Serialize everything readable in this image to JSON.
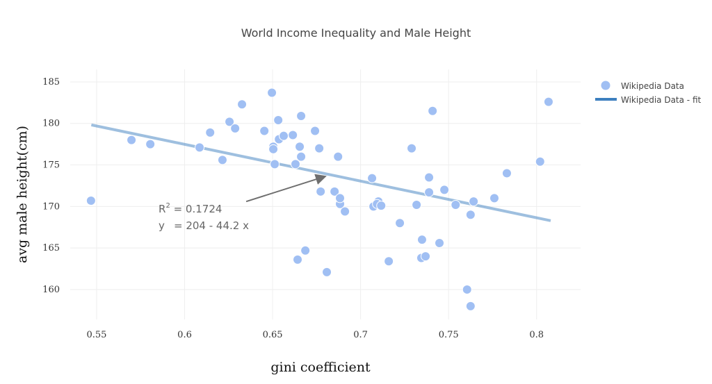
{
  "chart_data": {
    "type": "scatter",
    "title": "World Income Inequality and Male Height",
    "xlabel": "gini coefficient",
    "ylabel": "avg male height(cm)",
    "xlim": [
      0.535,
      0.825
    ],
    "ylim": [
      156.4,
      186.5
    ],
    "xticks": [
      0.55,
      0.6,
      0.65,
      0.7,
      0.75,
      0.8
    ],
    "xtick_labels": [
      "0.55",
      "0.6",
      "0.65",
      "0.7",
      "0.75",
      "0.8"
    ],
    "yticks": [
      160,
      165,
      170,
      175,
      180,
      185
    ],
    "ytick_labels": [
      "160",
      "165",
      "170",
      "175",
      "180",
      "185"
    ],
    "grid": true,
    "legend_position": "top-right",
    "series": [
      {
        "name": "Wikipedia Data",
        "kind": "scatter",
        "color": "#a0bff3",
        "points": [
          [
            0.5468,
            170.7
          ],
          [
            0.5698,
            178.0
          ],
          [
            0.5805,
            177.5
          ],
          [
            0.6085,
            177.1
          ],
          [
            0.6145,
            178.9
          ],
          [
            0.6215,
            175.6
          ],
          [
            0.6255,
            180.2
          ],
          [
            0.6287,
            179.4
          ],
          [
            0.6326,
            182.3
          ],
          [
            0.6453,
            179.1
          ],
          [
            0.6496,
            183.7
          ],
          [
            0.6504,
            177.2
          ],
          [
            0.6504,
            176.9
          ],
          [
            0.6512,
            175.1
          ],
          [
            0.6532,
            180.4
          ],
          [
            0.6536,
            178.1
          ],
          [
            0.6563,
            178.5
          ],
          [
            0.6615,
            178.6
          ],
          [
            0.663,
            175.1
          ],
          [
            0.6654,
            177.2
          ],
          [
            0.6662,
            180.9
          ],
          [
            0.6662,
            176.0
          ],
          [
            0.6686,
            164.7
          ],
          [
            0.6642,
            163.6
          ],
          [
            0.6741,
            179.1
          ],
          [
            0.6765,
            177.0
          ],
          [
            0.6773,
            171.8
          ],
          [
            0.6808,
            162.1
          ],
          [
            0.6852,
            171.8
          ],
          [
            0.6872,
            176.0
          ],
          [
            0.6883,
            170.3
          ],
          [
            0.6883,
            171.0
          ],
          [
            0.6911,
            169.4
          ],
          [
            0.7065,
            173.4
          ],
          [
            0.7073,
            170.0
          ],
          [
            0.7101,
            170.6
          ],
          [
            0.7093,
            170.3
          ],
          [
            0.7117,
            170.1
          ],
          [
            0.716,
            163.4
          ],
          [
            0.7223,
            168.0
          ],
          [
            0.729,
            177.0
          ],
          [
            0.7409,
            181.5
          ],
          [
            0.7318,
            170.2
          ],
          [
            0.7349,
            166.0
          ],
          [
            0.7345,
            163.8
          ],
          [
            0.7369,
            164.0
          ],
          [
            0.7389,
            173.5
          ],
          [
            0.7389,
            171.7
          ],
          [
            0.7448,
            165.6
          ],
          [
            0.7476,
            172.0
          ],
          [
            0.754,
            170.2
          ],
          [
            0.7605,
            160.0
          ],
          [
            0.7625,
            169.0
          ],
          [
            0.7625,
            158.0
          ],
          [
            0.7642,
            170.6
          ],
          [
            0.776,
            171.0
          ],
          [
            0.7831,
            174.0
          ],
          [
            0.802,
            175.4
          ],
          [
            0.8068,
            182.6
          ]
        ]
      },
      {
        "name": "Wikipedia Data - fit",
        "kind": "line",
        "color": "#3d7fbf",
        "intercept": 204,
        "slope": -44.2,
        "x_range": [
          0.547,
          0.808
        ]
      }
    ],
    "annotation": {
      "r2_label": "R",
      "r2_sup": "2",
      "r2_text": " = 0.1724",
      "eq_y": "y",
      "eq_text": "= 204 - 44.2 x",
      "arrow_from": [
        0.635,
        170.6
      ],
      "arrow_to": [
        0.6808,
        173.7
      ]
    }
  }
}
